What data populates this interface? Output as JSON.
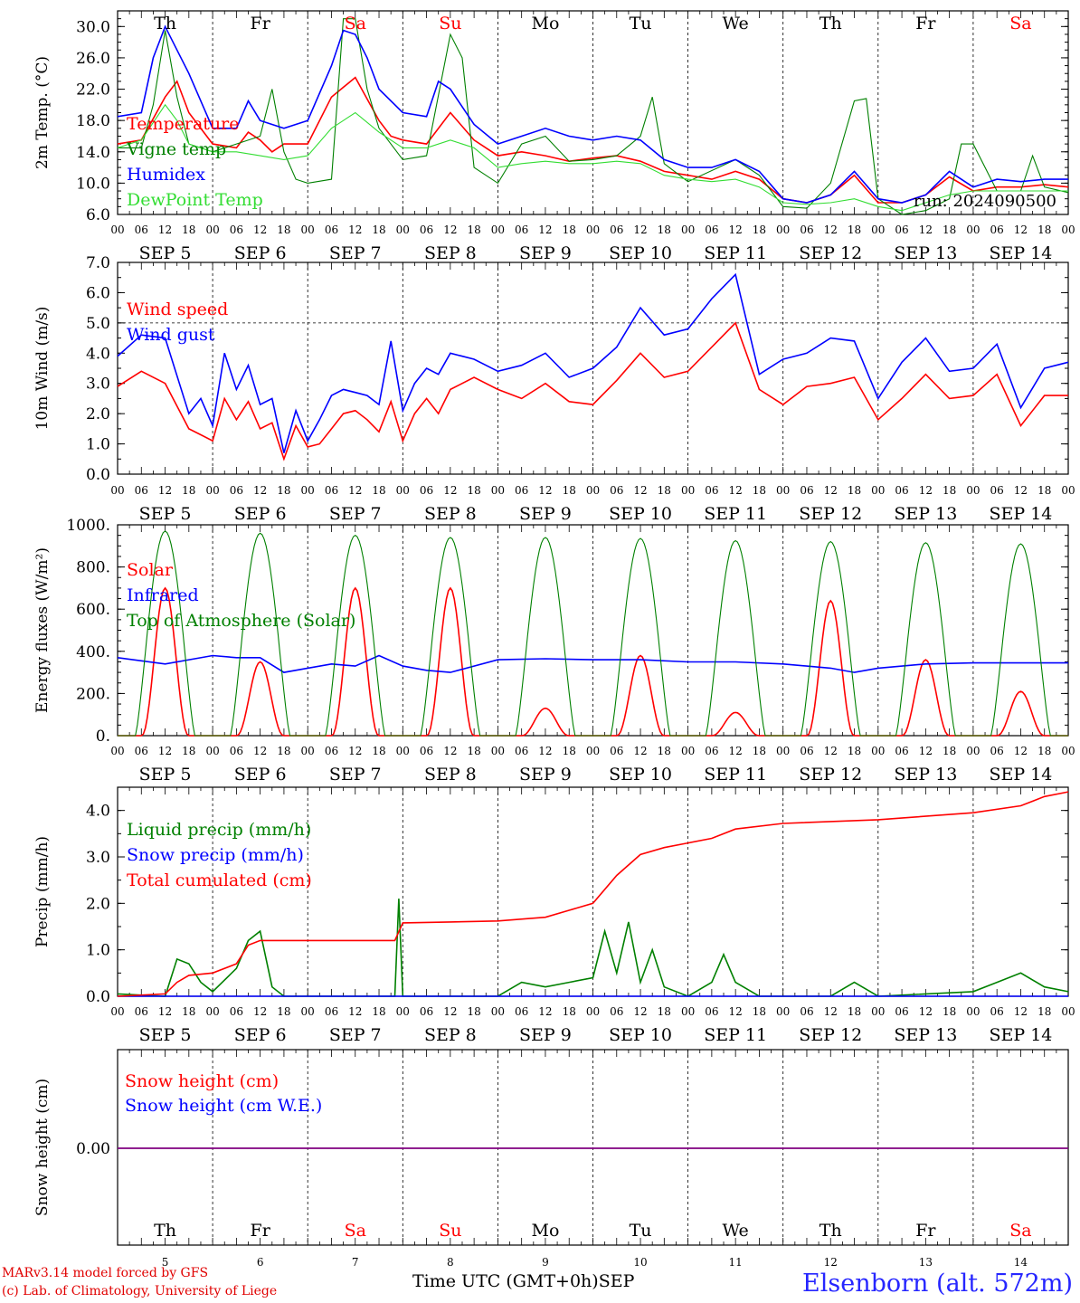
{
  "run_label": "run: 2024090500",
  "date_labels": [
    "SEP 5",
    "SEP 6",
    "SEP 7",
    "SEP 8",
    "SEP 9",
    "SEP 10",
    "SEP 11",
    "SEP 12",
    "SEP 13",
    "SEP 14"
  ],
  "hour_ticks": [
    "00",
    "06",
    "12",
    "18"
  ],
  "hour_end": "00",
  "day_names": [
    "Th",
    "Fr",
    "Sa",
    "Su",
    "Mo",
    "Tu",
    "We",
    "Th",
    "Fr",
    "Sa"
  ],
  "weekend_days": [
    2,
    3,
    9
  ],
  "day_numbers": [
    "5",
    "6",
    "7",
    "8",
    "9",
    "10",
    "11",
    "12",
    "13",
    "14"
  ],
  "footer": {
    "line1": "MARv3.14 model forced by GFS",
    "line2": "(c) Lab. of Climatology, University of Liege",
    "station": "Elsenborn (alt. 572m)",
    "x_title": "Time UTC (GMT+0h)",
    "x_month": "SEP"
  },
  "colors": {
    "red": "#ff0000",
    "green": "#008000",
    "blue": "#0000ff",
    "lightgreen": "#33dd33",
    "purple": "#800080",
    "weekend": "#ff0000"
  },
  "chart_data": [
    {
      "type": "line",
      "ylabel": "2m Temp. (°C)",
      "ylim": [
        6,
        32
      ],
      "yticks": [
        "6.0",
        "10.0",
        "14.0",
        "18.0",
        "22.0",
        "26.0",
        "30.0"
      ],
      "x_unit": "hours since SEP 5 00 UTC",
      "series": [
        {
          "name": "Temperature",
          "color": "red",
          "x": [
            0,
            6,
            12,
            15,
            18,
            24,
            30,
            33,
            36,
            39,
            42,
            48,
            54,
            60,
            66,
            69,
            72,
            78,
            84,
            90,
            96,
            102,
            108,
            114,
            120,
            126,
            132,
            138,
            144,
            150,
            156,
            162,
            168,
            174,
            180,
            186,
            192,
            198,
            204,
            210,
            216,
            222,
            228,
            234,
            240
          ],
          "y": [
            15,
            15.5,
            21,
            23,
            19,
            15,
            14.5,
            16.5,
            15.5,
            14,
            15,
            15,
            21,
            23.5,
            18,
            16,
            15.5,
            15,
            19,
            15.5,
            13.5,
            14,
            13.5,
            12.8,
            13.2,
            13.5,
            12.8,
            11.5,
            11,
            10.5,
            11.5,
            10.5,
            8,
            7.5,
            8.5,
            11,
            7.5,
            7.5,
            8.5,
            10.8,
            9,
            9.5,
            9.5,
            9.8,
            9.5
          ]
        },
        {
          "name": "Vigne temp",
          "color": "green",
          "x": [
            0,
            6,
            9,
            12,
            15,
            18,
            24,
            36,
            39,
            42,
            45,
            48,
            54,
            57,
            60,
            63,
            66,
            72,
            78,
            84,
            87,
            90,
            96,
            102,
            108,
            114,
            120,
            126,
            132,
            135,
            138,
            144,
            156,
            162,
            168,
            174,
            180,
            186,
            189,
            192,
            198,
            204,
            210,
            213,
            216,
            222,
            228,
            231,
            234,
            240
          ],
          "y": [
            14.5,
            14.5,
            20,
            29.5,
            21,
            15,
            14,
            16,
            22,
            14,
            10.5,
            10,
            10.5,
            31,
            31,
            22,
            17,
            13,
            13.5,
            29,
            26,
            12,
            10,
            15,
            16,
            12.8,
            13,
            13.5,
            16,
            21,
            12.5,
            10.2,
            13,
            11,
            7,
            6.8,
            10,
            20.5,
            20.8,
            8,
            6,
            6.5,
            8,
            15,
            15,
            9,
            9,
            13.5,
            9.5,
            8.8
          ]
        },
        {
          "name": "Humidex",
          "color": "blue",
          "x": [
            0,
            6,
            9,
            12,
            15,
            18,
            24,
            30,
            33,
            36,
            42,
            48,
            54,
            57,
            60,
            63,
            66,
            72,
            78,
            81,
            84,
            90,
            96,
            102,
            108,
            114,
            120,
            126,
            132,
            138,
            144,
            150,
            156,
            162,
            168,
            174,
            180,
            186,
            192,
            198,
            204,
            210,
            216,
            222,
            228,
            234,
            240
          ],
          "y": [
            18.5,
            19,
            26,
            30,
            27,
            24,
            17,
            17,
            20.5,
            18,
            17,
            18,
            25,
            29.5,
            29,
            26,
            22,
            19,
            18.5,
            23,
            22,
            17.5,
            15,
            16,
            17,
            16,
            15.5,
            16,
            15.5,
            13,
            12,
            12,
            13,
            11.5,
            8,
            7.5,
            8.5,
            11.5,
            8,
            7.5,
            8.5,
            11.5,
            9.5,
            10.5,
            10.2,
            10.5,
            10.5
          ]
        },
        {
          "name": "DewPoint Temp",
          "color": "lightgreen",
          "x": [
            0,
            6,
            12,
            15,
            18,
            24,
            30,
            36,
            42,
            48,
            54,
            60,
            66,
            72,
            78,
            84,
            90,
            96,
            102,
            108,
            114,
            120,
            126,
            132,
            138,
            144,
            150,
            156,
            162,
            168,
            174,
            180,
            186,
            192,
            198,
            204,
            210,
            216,
            222,
            228,
            234,
            240
          ],
          "y": [
            14.5,
            15.5,
            20,
            18,
            15,
            14,
            14,
            13.5,
            13,
            13.5,
            17,
            19,
            16.5,
            14.5,
            14.5,
            15.5,
            14.5,
            12,
            12.5,
            12.8,
            12.5,
            12.5,
            12.8,
            12.5,
            11,
            10.5,
            10.2,
            10.5,
            9.5,
            7.5,
            7.3,
            7.5,
            8,
            7,
            6.5,
            7.5,
            8.5,
            9,
            9,
            9,
            9,
            9
          ]
        }
      ],
      "legend_location": "left, inside plot"
    },
    {
      "type": "line",
      "ylabel": "10m Wind (m/s)",
      "ylim": [
        0,
        7
      ],
      "yticks": [
        "0.0",
        "1.0",
        "2.0",
        "3.0",
        "4.0",
        "5.0",
        "6.0",
        "7.0"
      ],
      "reference_line": 5,
      "series": [
        {
          "name": "Wind speed",
          "color": "red",
          "x": [
            0,
            6,
            12,
            18,
            21,
            24,
            27,
            30,
            33,
            36,
            39,
            42,
            45,
            48,
            51,
            54,
            57,
            60,
            63,
            66,
            69,
            72,
            75,
            78,
            81,
            84,
            90,
            96,
            102,
            108,
            114,
            120,
            126,
            132,
            138,
            144,
            150,
            156,
            162,
            168,
            174,
            180,
            186,
            192,
            198,
            204,
            210,
            216,
            222,
            228,
            234,
            240
          ],
          "y": [
            2.9,
            3.4,
            3.0,
            1.5,
            1.3,
            1.1,
            2.5,
            1.8,
            2.4,
            1.5,
            1.7,
            0.5,
            1.6,
            0.9,
            1.0,
            1.5,
            2.0,
            2.1,
            1.8,
            1.4,
            2.4,
            1.1,
            2.0,
            2.5,
            2.0,
            2.8,
            3.2,
            2.8,
            2.5,
            3.0,
            2.4,
            2.3,
            3.1,
            4.0,
            3.2,
            3.4,
            4.2,
            5.0,
            2.8,
            2.3,
            2.9,
            3.0,
            3.2,
            1.8,
            2.5,
            3.3,
            2.5,
            2.6,
            3.3,
            1.6,
            2.6,
            2.6
          ]
        },
        {
          "name": "Wind gust",
          "color": "blue",
          "x": [
            0,
            6,
            12,
            18,
            21,
            24,
            27,
            30,
            33,
            36,
            39,
            42,
            45,
            48,
            51,
            54,
            57,
            60,
            63,
            66,
            69,
            72,
            75,
            78,
            81,
            84,
            90,
            96,
            102,
            108,
            114,
            120,
            126,
            132,
            138,
            144,
            150,
            156,
            162,
            168,
            174,
            180,
            186,
            192,
            198,
            204,
            210,
            216,
            222,
            228,
            234,
            240
          ],
          "y": [
            3.9,
            4.6,
            4.5,
            2.0,
            2.5,
            1.6,
            4.0,
            2.8,
            3.6,
            2.3,
            2.5,
            0.7,
            2.1,
            1.1,
            1.8,
            2.6,
            2.8,
            2.7,
            2.6,
            2.3,
            4.4,
            2.1,
            3.0,
            3.5,
            3.3,
            4.0,
            3.8,
            3.4,
            3.6,
            4.0,
            3.2,
            3.5,
            4.2,
            5.5,
            4.6,
            4.8,
            5.8,
            6.6,
            3.3,
            3.8,
            4.0,
            4.5,
            4.4,
            2.5,
            3.7,
            4.5,
            3.4,
            3.5,
            4.3,
            2.2,
            3.5,
            3.7
          ]
        }
      ],
      "legend_location": "left, inside plot"
    },
    {
      "type": "line",
      "ylabel": "Energy fluxes (W/m²)",
      "ylim": [
        0,
        1000
      ],
      "yticks": [
        "0.",
        "200.",
        "400.",
        "600.",
        "800.",
        "1000."
      ],
      "series": [
        {
          "name": "Solar",
          "color": "red",
          "daily_peak": [
            700,
            350,
            700,
            700,
            130,
            380,
            110,
            640,
            360,
            210
          ]
        },
        {
          "name": "Infrared",
          "color": "blue",
          "x": [
            0,
            12,
            24,
            30,
            36,
            42,
            48,
            54,
            60,
            66,
            72,
            78,
            84,
            96,
            108,
            120,
            132,
            144,
            156,
            168,
            180,
            186,
            192,
            204,
            216,
            228,
            240
          ],
          "y": [
            370,
            340,
            380,
            370,
            370,
            300,
            320,
            340,
            330,
            380,
            330,
            310,
            300,
            360,
            365,
            360,
            360,
            350,
            350,
            340,
            320,
            300,
            320,
            340,
            345,
            345,
            345
          ]
        },
        {
          "name": "Top of Atmosphere (Solar)",
          "color": "green",
          "daily_peak": [
            970,
            960,
            950,
            940,
            940,
            935,
            925,
            920,
            915,
            910
          ]
        }
      ],
      "legend_location": "left, inside plot"
    },
    {
      "type": "line",
      "ylabel": "Precip (mm/h)",
      "ylim": [
        0,
        4.5
      ],
      "yticks": [
        "0.0",
        "1.0",
        "2.0",
        "3.0",
        "4.0"
      ],
      "series": [
        {
          "name": "Liquid precip (mm/h)",
          "color": "green",
          "x": [
            0,
            12,
            15,
            18,
            21,
            24,
            30,
            33,
            36,
            39,
            42,
            48,
            66,
            70,
            71,
            72,
            96,
            102,
            108,
            114,
            120,
            123,
            126,
            129,
            132,
            135,
            138,
            144,
            150,
            153,
            156,
            162,
            168,
            180,
            186,
            192,
            216,
            222,
            228,
            234,
            240
          ],
          "y": [
            0.05,
            0,
            0.8,
            0.7,
            0.3,
            0.1,
            0.6,
            1.2,
            1.4,
            0.2,
            0,
            0,
            0,
            0,
            2.1,
            0,
            0,
            0.3,
            0.2,
            0.3,
            0.4,
            1.4,
            0.5,
            1.6,
            0.3,
            1.0,
            0.2,
            0,
            0.3,
            0.9,
            0.3,
            0,
            0,
            0,
            0.3,
            0,
            0.1,
            0.3,
            0.5,
            0.2,
            0.1
          ]
        },
        {
          "name": "Snow precip (mm/h)",
          "color": "blue",
          "x": [
            0,
            240
          ],
          "y": [
            0,
            0
          ]
        },
        {
          "name": "Total cumulated (cm)",
          "color": "red",
          "x": [
            0,
            12,
            15,
            18,
            24,
            30,
            33,
            36,
            42,
            48,
            60,
            70,
            72,
            84,
            96,
            108,
            114,
            120,
            126,
            132,
            138,
            144,
            150,
            156,
            168,
            192,
            216,
            228,
            234,
            240
          ],
          "y": [
            0,
            0.05,
            0.3,
            0.45,
            0.5,
            0.7,
            1.1,
            1.2,
            1.2,
            1.2,
            1.2,
            1.2,
            1.58,
            1.6,
            1.62,
            1.7,
            1.85,
            2.0,
            2.6,
            3.05,
            3.2,
            3.3,
            3.4,
            3.6,
            3.72,
            3.8,
            3.95,
            4.1,
            4.3,
            4.4
          ]
        }
      ],
      "legend_location": "left, inside plot"
    },
    {
      "type": "line",
      "ylabel": "Snow height (cm)",
      "yticks": [
        "0.00"
      ],
      "series": [
        {
          "name": "Snow height (cm)",
          "color": "red",
          "x": [
            0,
            240
          ],
          "y": [
            0,
            0
          ]
        },
        {
          "name": "Snow height (cm W.E.)",
          "color": "blue",
          "x": [
            0,
            240
          ],
          "y": [
            0,
            0
          ]
        }
      ],
      "legend_location": "left, inside plot"
    }
  ]
}
